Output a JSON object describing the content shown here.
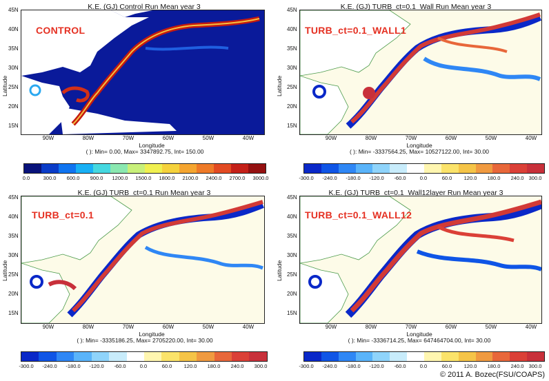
{
  "panels": [
    {
      "title": "K.E. (GJ) Control Run Mean year 3",
      "tag": "CONTROL",
      "xlabel": "Longitude",
      "ylabel": "Latitude",
      "stats": "( ): Min= 0.00, Max= 3347892.75, Int= 150.00",
      "lat_ticks": [
        "45N",
        "40N",
        "35N",
        "30N",
        "25N",
        "20N",
        "15N"
      ],
      "lon_ticks": [
        "90W",
        "80W",
        "70W",
        "60W",
        "50W",
        "40W"
      ],
      "colorbar_labels": [
        "0.0",
        "300.0",
        "600.0",
        "900.0",
        "1200.0",
        "1500.0",
        "1800.0",
        "2100.0",
        "2400.0",
        "2700.0",
        "3000.0"
      ]
    },
    {
      "title": "K.E. (GJ) TURB_ct=0.1_Wall Run Mean year 3",
      "tag": "TURB_ct=0.1_WALL1",
      "xlabel": "Longitude",
      "ylabel": "Latitude",
      "stats": "( ): Min= -3337564.25, Max= 10527122.00, Int= 30.00",
      "lat_ticks": [
        "45N",
        "40N",
        "35N",
        "30N",
        "25N",
        "20N",
        "15N"
      ],
      "lon_ticks": [
        "90W",
        "80W",
        "70W",
        "60W",
        "50W",
        "40W"
      ],
      "colorbar_labels": [
        "-300.0",
        "-240.0",
        "-180.0",
        "-120.0",
        "-60.0",
        "0.0",
        "60.0",
        "120.0",
        "180.0",
        "240.0",
        "300.0"
      ]
    },
    {
      "title": "K.E. (GJ) TURB_ct=0.1 Run Mean year 3",
      "tag": "TURB_ct=0.1",
      "xlabel": "Longitude",
      "ylabel": "Latitude",
      "stats": "( ): Min= -3335186.25, Max= 2705220.00, Int= 30.00",
      "lat_ticks": [
        "45N",
        "40N",
        "35N",
        "30N",
        "25N",
        "20N",
        "15N"
      ],
      "lon_ticks": [
        "90W",
        "80W",
        "70W",
        "60W",
        "50W",
        "40W"
      ],
      "colorbar_labels": [
        "-300.0",
        "-240.0",
        "-180.0",
        "-120.0",
        "-60.0",
        "0.0",
        "60.0",
        "120.0",
        "180.0",
        "240.0",
        "300.0"
      ]
    },
    {
      "title": "K.E. (GJ) TURB_ct=0.1_Wall12layer Run Mean year 3",
      "tag": "TURB_ct=0.1_WALL12",
      "xlabel": "Longitude",
      "ylabel": "Latitude",
      "stats": "( ): Min= -3336714.25, Max= 647464704.00, Int= 30.00",
      "lat_ticks": [
        "45N",
        "40N",
        "35N",
        "30N",
        "25N",
        "20N",
        "15N"
      ],
      "lon_ticks": [
        "90W",
        "80W",
        "70W",
        "60W",
        "50W",
        "40W"
      ],
      "colorbar_labels": [
        "-300.0",
        "-240.0",
        "-180.0",
        "-120.0",
        "-60.0",
        "0.0",
        "60.0",
        "120.0",
        "180.0",
        "240.0",
        "300.0"
      ]
    }
  ],
  "colors": {
    "seq": [
      "#08127a",
      "#0a3cc8",
      "#0f74f0",
      "#18b0f5",
      "#45d8e0",
      "#8ae8b0",
      "#c8f07a",
      "#f0f050",
      "#f5d23c",
      "#f5a530",
      "#ee7a28",
      "#e24a22",
      "#c42018",
      "#941010"
    ],
    "div": [
      "#0a28c8",
      "#0f55e6",
      "#2f87f5",
      "#5ab4fa",
      "#8fd4fb",
      "#c8ecfb",
      "#ffffff",
      "#fff6b0",
      "#fbe36a",
      "#f5c447",
      "#f09a40",
      "#e8673a",
      "#db4037",
      "#c8303a"
    ],
    "tag": "#e53022"
  },
  "credit": "© 2011 A. Bozec(FSU/COAPS)"
}
